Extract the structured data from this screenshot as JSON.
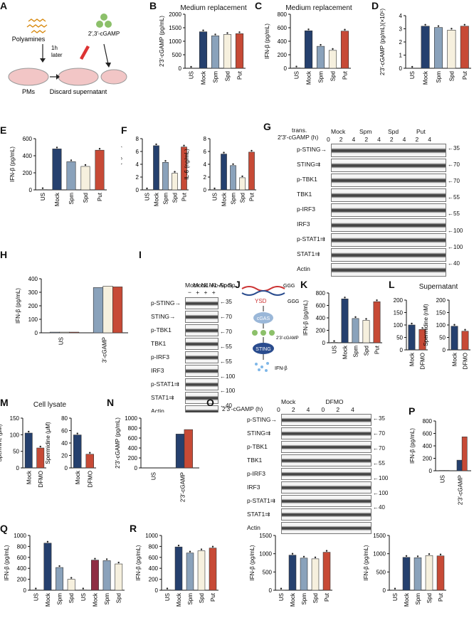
{
  "colors": {
    "blue": "#25406e",
    "lightblue": "#8aa2bb",
    "cream": "#f6f0de",
    "red": "#c74a36",
    "maroon": "#8e2d43"
  },
  "panels": {
    "A": {
      "label": "A",
      "polyamines": "Polyamines",
      "time": "1h",
      "later": "later",
      "cgamp": "2′,3′-cGAMP",
      "pms": "PMs",
      "discard": "Discard supernatant"
    },
    "B": {
      "label": "B",
      "title": "Medium replacement",
      "ylabel": "2′3′-cGAMP (pg/mL)",
      "group": "2′3′-cGAMP",
      "ns": "NS"
    },
    "C": {
      "label": "C",
      "title": "Medium replacement",
      "ylabel": "IFN-β (pg/mL)",
      "group": "2′3′-cGAMP",
      "ns": "NS",
      "sig": "**"
    },
    "D": {
      "label": "D",
      "ylabel": "2′3′-cGAMP (pg/mL)(×10⁵)",
      "group1": "trans.",
      "group2": "2′3′-cGAMP",
      "ns": "NS"
    },
    "E": {
      "label": "E",
      "ylabel": "IFN-β (pg/mL)",
      "group1": "trans.",
      "group2": "2′3′-cGAMP",
      "ns": "NS",
      "sig": "**"
    },
    "F": {
      "label": "F",
      "ylabel1": "TNF-α (ng/mL)",
      "ylabel2": "IL-6 (ng/mL)",
      "group1": "trans.",
      "group2": "2′3′-cGAMP",
      "ns": "NS",
      "sig": "**"
    },
    "G": {
      "label": "G",
      "trans": "trans.",
      "time": "2′3′-cGAMP (h)",
      "groups": [
        "Mock",
        "Spm",
        "Spd",
        "Put"
      ],
      "times": [
        "0",
        "2",
        "4",
        "2",
        "4",
        "2",
        "4",
        "2",
        "4"
      ],
      "rows": [
        "p-STING→",
        "STING⇉",
        "p-TBK1",
        "TBK1",
        "p-IRF3",
        "IRF3",
        "p-STAT1⇉",
        "STAT1⇉",
        "Actin"
      ],
      "mw": [
        "←35",
        "←70",
        "←70",
        "←55",
        "←55",
        "←100",
        "←100",
        "←40"
      ]
    },
    "H": {
      "label": "H",
      "legend": [
        "Mock",
        "N1-Ac-Spm",
        "N1-Ac-Spd"
      ],
      "ylabel": "IFN-β (pg/mL)",
      "x1": "US",
      "x2a": "trans.",
      "x2b": "2′3′-cGAMP",
      "ns": "NS"
    },
    "I": {
      "label": "I",
      "cols": [
        "Mock",
        "Mock",
        "N1-Ac-Spm",
        "N1-Ac-Spd"
      ],
      "trans": "trans.",
      "cgamp": "2′3′-cGAMP",
      "signs": [
        "−",
        "+",
        "+",
        "+"
      ],
      "rows": [
        "p-STING→",
        "STING→",
        "p-TBK1",
        "TBK1",
        "p-IRF3",
        "IRF3",
        "p-STAT1⇉",
        "STAT1⇉",
        "Actin"
      ],
      "mw": [
        "←35",
        "←70",
        "←70",
        "←55",
        "←55",
        "←100",
        "←100",
        "←40"
      ]
    },
    "J": {
      "label": "J",
      "ysd": "YSD",
      "ggg1": "GGG",
      "ggg2": "GGG",
      "cgas": "cGAS",
      "cgamp": "2′3′-cGAMP",
      "sting": "STING",
      "ifn": "IFN-β"
    },
    "K": {
      "label": "K",
      "ylabel": "IFN-β (pg/mL)",
      "group": "YSD",
      "ns": "NS",
      "sig": "**"
    },
    "L": {
      "label": "L",
      "title": "Supernatant",
      "ylabel1": "Spermine (nM)",
      "ylabel2": "Spermidine (nM)",
      "ns": "NS"
    },
    "M": {
      "label": "M",
      "title": "Cell lysate",
      "ylabel1": "Spermine (μM)",
      "ylabel2": "Spermidine (μM)",
      "sig": "**"
    },
    "N": {
      "label": "N",
      "legend": [
        "Mock",
        "DFMO"
      ],
      "ylabel": "2′3′-cGAMP (pg/mL)",
      "ns": "NS"
    },
    "O": {
      "label": "O",
      "groups": [
        "Mock",
        "DFMO"
      ],
      "time": "2′3′-cGAMP (h)",
      "times": [
        "0",
        "2",
        "4",
        "0",
        "2",
        "4"
      ],
      "rows": [
        "p-STING→",
        "STING⇉",
        "p-TBK1",
        "TBK1",
        "p-IRF3",
        "IRF3",
        "p-STAT1⇉",
        "STAT1⇉",
        "Actin"
      ],
      "mw": [
        "←35",
        "←70",
        "←70",
        "←55",
        "←100",
        "←100",
        "←40"
      ]
    },
    "P": {
      "label": "P",
      "legend": [
        "Mock",
        "DFMO"
      ],
      "ylabel": "IFN-β (pg/mL)",
      "sig": "**"
    },
    "Q": {
      "label": "Q",
      "ylabel": "IFN-β (pg/mL)",
      "lmono1": "L.mono",
      "lmono2": "L.mono",
      "cgas1": "Cgas⁺/⁺",
      "cgas2": "Cgas⁻/⁻",
      "sig": "**",
      "ns": "NS"
    },
    "R": {
      "label": "R",
      "ylabel": "IFN-β (pg/mL)",
      "trans": "trans.",
      "g1": "c-di-AMP",
      "g2": "c-di-GMP",
      "g3": "3′3′-cGAMP",
      "ns": "NS"
    }
  },
  "chart_data": [
    {
      "id": "B",
      "type": "bar",
      "categories": [
        "US",
        "Mock",
        "Spm",
        "Spd",
        "Put"
      ],
      "values": [
        0,
        1350,
        1200,
        1250,
        1280
      ],
      "ylim": [
        0,
        2000
      ],
      "yticks": [
        0,
        500,
        1000,
        1500,
        2000
      ],
      "ylabel": "2′3′-cGAMP (pg/mL)"
    },
    {
      "id": "C",
      "type": "bar",
      "categories": [
        "US",
        "Mock",
        "Spm",
        "Spd",
        "Put"
      ],
      "values": [
        5,
        555,
        325,
        265,
        550
      ],
      "ylim": [
        0,
        800
      ],
      "yticks": [
        0,
        200,
        400,
        600,
        800
      ],
      "ylabel": "IFN-β (pg/mL)"
    },
    {
      "id": "D",
      "type": "bar",
      "categories": [
        "US",
        "Mock",
        "Spm",
        "Spd",
        "Put"
      ],
      "values": [
        0,
        3.2,
        3.1,
        2.9,
        3.2
      ],
      "ylim": [
        0,
        4
      ],
      "yticks": [
        0,
        1,
        2,
        3,
        4
      ],
      "ylabel": "2′3′-cGAMP (pg/mL)(×10⁵)"
    },
    {
      "id": "E",
      "type": "bar",
      "categories": [
        "US",
        "Mock",
        "Spm",
        "Spd",
        "Put"
      ],
      "values": [
        3,
        480,
        330,
        275,
        465
      ],
      "ylim": [
        0,
        600
      ],
      "yticks": [
        0,
        200,
        400,
        600
      ],
      "ylabel": "IFN-β (pg/mL)"
    },
    {
      "id": "F1",
      "type": "bar",
      "categories": [
        "US",
        "Mock",
        "Spm",
        "Spd",
        "Put"
      ],
      "values": [
        0,
        6.9,
        4.3,
        2.6,
        6.7
      ],
      "ylim": [
        0,
        8
      ],
      "yticks": [
        0,
        2,
        4,
        6,
        8
      ],
      "ylabel": "TNF-α (ng/mL)"
    },
    {
      "id": "F2",
      "type": "bar",
      "categories": [
        "US",
        "Mock",
        "Spm",
        "Spd",
        "Put"
      ],
      "values": [
        0,
        5.6,
        3.8,
        1.9,
        5.9
      ],
      "ylim": [
        0,
        8
      ],
      "yticks": [
        0,
        2,
        4,
        6,
        8
      ],
      "ylabel": "IL-6 (ng/mL)"
    },
    {
      "id": "H",
      "type": "bar",
      "categories": [
        "US",
        "trans. 2′3′-cGAMP"
      ],
      "series": [
        {
          "name": "Mock",
          "values": [
            5,
            335
          ]
        },
        {
          "name": "N1-Ac-Spm",
          "values": [
            5,
            345
          ]
        },
        {
          "name": "N1-Ac-Spd",
          "values": [
            5,
            340
          ]
        }
      ],
      "ylim": [
        0,
        400
      ],
      "yticks": [
        0,
        100,
        200,
        300,
        400
      ],
      "ylabel": "IFN-β (pg/mL)"
    },
    {
      "id": "K",
      "type": "bar",
      "categories": [
        "US",
        "Mock",
        "Spm",
        "Spd",
        "Put"
      ],
      "values": [
        5,
        705,
        390,
        360,
        660
      ],
      "ylim": [
        0,
        800
      ],
      "yticks": [
        0,
        200,
        400,
        600,
        800
      ],
      "ylabel": "IFN-β (pg/mL)"
    },
    {
      "id": "L1",
      "type": "bar",
      "categories": [
        "Mock",
        "DFMO"
      ],
      "values": [
        100,
        82
      ],
      "ylim": [
        0,
        200
      ],
      "yticks": [
        0,
        50,
        100,
        150,
        200
      ],
      "ylabel": "Spermine (nM)"
    },
    {
      "id": "L2",
      "type": "bar",
      "categories": [
        "Mock",
        "DFMO"
      ],
      "values": [
        95,
        75
      ],
      "ylim": [
        0,
        200
      ],
      "yticks": [
        0,
        50,
        100,
        150,
        200
      ],
      "ylabel": "Spermidine (nM)"
    },
    {
      "id": "M1",
      "type": "bar",
      "categories": [
        "Mock",
        "DFMO"
      ],
      "values": [
        105,
        60
      ],
      "ylim": [
        0,
        150
      ],
      "yticks": [
        0,
        50,
        100,
        150
      ],
      "ylabel": "Spermine (μM)"
    },
    {
      "id": "M2",
      "type": "bar",
      "categories": [
        "Mock",
        "DFMO"
      ],
      "values": [
        53,
        22
      ],
      "ylim": [
        0,
        80
      ],
      "yticks": [
        0,
        20,
        40,
        60,
        80
      ],
      "ylabel": "Spermidine (μM)"
    },
    {
      "id": "N",
      "type": "bar",
      "categories": [
        "US",
        "2′3′-cGAMP"
      ],
      "series": [
        {
          "name": "Mock",
          "values": [
            0,
            680
          ]
        },
        {
          "name": "DFMO",
          "values": [
            0,
            770
          ]
        }
      ],
      "ylim": [
        0,
        1000
      ],
      "yticks": [
        0,
        200,
        400,
        600,
        800,
        1000
      ],
      "ylabel": "2′3′-cGAMP (pg/mL)"
    },
    {
      "id": "P",
      "type": "bar",
      "categories": [
        "US",
        "2′3′-cGAMP"
      ],
      "series": [
        {
          "name": "Mock",
          "values": [
            5,
            170
          ]
        },
        {
          "name": "DFMO",
          "values": [
            5,
            545
          ]
        }
      ],
      "ylim": [
        0,
        800
      ],
      "yticks": [
        0,
        200,
        400,
        600,
        800
      ],
      "ylabel": "IFN-β (pg/mL)"
    },
    {
      "id": "Q",
      "type": "bar",
      "categories": [
        "US",
        "Mock",
        "Spm",
        "Spd",
        "US",
        "Mock",
        "Spm",
        "Spd"
      ],
      "values": [
        5,
        860,
        415,
        200,
        5,
        550,
        540,
        480
      ],
      "ylim": [
        0,
        1000
      ],
      "yticks": [
        0,
        200,
        400,
        600,
        800,
        1000
      ],
      "ylabel": "IFN-β (pg/mL)"
    },
    {
      "id": "R1",
      "type": "bar",
      "categories": [
        "US",
        "Mock",
        "Spm",
        "Spd",
        "Put"
      ],
      "values": [
        5,
        790,
        680,
        720,
        770
      ],
      "ylim": [
        0,
        1000
      ],
      "yticks": [
        0,
        200,
        400,
        600,
        800,
        1000
      ],
      "ylabel": "IFN-β (pg/mL)"
    },
    {
      "id": "R2",
      "type": "bar",
      "categories": [
        "US",
        "Mock",
        "Spm",
        "Spd",
        "Put"
      ],
      "values": [
        5,
        960,
        880,
        860,
        1040
      ],
      "ylim": [
        0,
        1500
      ],
      "yticks": [
        0,
        500,
        1000,
        1500
      ],
      "ylabel": "IFN-β (pg/mL)"
    },
    {
      "id": "R3",
      "type": "bar",
      "categories": [
        "US",
        "Mock",
        "Spm",
        "Spd",
        "Put"
      ],
      "values": [
        5,
        900,
        890,
        950,
        940
      ],
      "ylim": [
        0,
        1500
      ],
      "yticks": [
        0,
        500,
        1000,
        1500
      ],
      "ylabel": "IFN-β (pg/mL)"
    }
  ]
}
